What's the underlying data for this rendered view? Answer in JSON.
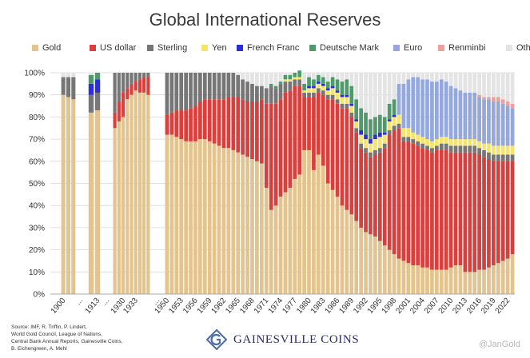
{
  "chart_data": {
    "type": "stacked-bar",
    "title": "Global International Reserves",
    "xlabel": "",
    "ylabel": "",
    "ylim": [
      0,
      100
    ],
    "y_tick_labels": [
      "0%",
      "10%",
      "20%",
      "30%",
      "40%",
      "50%",
      "60%",
      "70%",
      "80%",
      "90%",
      "100%"
    ],
    "grid": true,
    "legend_position": "top",
    "series_names": [
      "Gold",
      "US dollar",
      "Sterling",
      "Yen",
      "French Franc",
      "Deutsche Mark",
      "Euro",
      "Renminbi",
      "Other"
    ],
    "series_colors": [
      "#e3c48f",
      "#d9403d",
      "#767676",
      "#f5e56b",
      "#2b2be0",
      "#4f9a6a",
      "#94a8dd",
      "#f0a09a",
      "#e4e4e4"
    ],
    "x_tick_labels": [
      "1900",
      "...",
      "1913",
      "...",
      "1930",
      "1933",
      "...",
      "1950",
      "1953",
      "1956",
      "1959",
      "1962",
      "1965",
      "1968",
      "1971",
      "1974",
      "1977",
      "1980",
      "1983",
      "1986",
      "1989",
      "1992",
      "1995",
      "1998",
      "2001",
      "2004",
      "2007",
      "2010",
      "2013",
      "2016",
      "2019",
      "2022"
    ],
    "groups": [
      {
        "years": [
          1900,
          1901,
          1902
        ],
        "gold": [
          90,
          89,
          88
        ],
        "usd": [
          0,
          0,
          0
        ],
        "sterling": [
          8,
          9,
          10
        ],
        "ff": [
          0,
          0,
          0
        ],
        "dm": [
          0,
          0,
          0
        ],
        "yen": [
          0,
          0,
          0
        ],
        "euro": [
          0,
          0,
          0
        ],
        "rmb": [
          0,
          0,
          0
        ],
        "total": [
          100,
          100,
          100
        ]
      },
      {
        "years": [
          1912,
          1913
        ],
        "gold": [
          82,
          83
        ],
        "usd": [
          0,
          0
        ],
        "sterling": [
          8,
          8
        ],
        "ff": [
          5,
          6
        ],
        "dm": [
          4,
          3
        ],
        "yen": [
          0,
          0
        ],
        "euro": [
          0,
          0
        ],
        "rmb": [
          0,
          0
        ],
        "total": [
          100,
          100
        ]
      },
      {
        "years": [
          1928,
          1929,
          1930,
          1931,
          1932,
          1933,
          1934,
          1935,
          1936
        ],
        "gold": [
          75,
          78,
          80,
          88,
          90,
          92,
          91,
          91,
          90
        ],
        "usd": [
          7,
          9,
          11,
          5,
          5,
          4,
          6,
          7,
          8
        ],
        "sterling": [
          18,
          13,
          9,
          7,
          5,
          4,
          3,
          2,
          2
        ],
        "ff": [
          0,
          0,
          0,
          0,
          0,
          0,
          0,
          0,
          0
        ],
        "dm": [
          0,
          0,
          0,
          0,
          0,
          0,
          0,
          0,
          0
        ],
        "yen": [
          0,
          0,
          0,
          0,
          0,
          0,
          0,
          0,
          0
        ],
        "euro": [
          0,
          0,
          0,
          0,
          0,
          0,
          0,
          0,
          0
        ],
        "rmb": [
          0,
          0,
          0,
          0,
          0,
          0,
          0,
          0,
          0
        ],
        "total": [
          100,
          100,
          100,
          100,
          100,
          100,
          100,
          100,
          100
        ]
      },
      {
        "years": [
          1950,
          1951,
          1952,
          1953,
          1954,
          1955,
          1956,
          1957,
          1958,
          1959,
          1960,
          1961,
          1962,
          1963,
          1964,
          1965,
          1966,
          1967,
          1968,
          1969,
          1970,
          1971,
          1972,
          1973,
          1974,
          1975,
          1976,
          1977,
          1978,
          1979,
          1980,
          1981,
          1982,
          1983,
          1984,
          1985,
          1986,
          1987,
          1988,
          1989,
          1990,
          1991,
          1992,
          1993,
          1994,
          1995,
          1996,
          1997,
          1998,
          1999,
          2000,
          2001,
          2002,
          2003,
          2004,
          2005,
          2006,
          2007,
          2008,
          2009,
          2010,
          2011,
          2012,
          2013,
          2014,
          2015,
          2016,
          2017,
          2018,
          2019,
          2020,
          2021,
          2022,
          2023
        ],
        "gold": [
          72,
          72,
          71,
          70,
          69,
          69,
          69,
          70,
          70,
          69,
          68,
          67,
          66,
          66,
          65,
          64,
          63,
          62,
          61,
          60,
          59,
          48,
          38,
          40,
          44,
          46,
          48,
          52,
          54,
          65,
          65,
          56,
          63,
          58,
          50,
          47,
          44,
          40,
          38,
          36,
          33,
          30,
          28,
          27,
          26,
          24,
          22,
          20,
          18,
          16,
          15,
          14,
          13,
          13,
          12,
          12,
          11,
          11,
          11,
          11,
          12,
          13,
          13,
          10,
          10,
          10,
          11,
          11,
          12,
          13,
          14,
          15,
          16,
          18
        ],
        "usd": [
          9,
          10,
          12,
          13,
          14,
          15,
          16,
          17,
          18,
          19,
          20,
          21,
          22,
          23,
          24,
          25,
          25,
          25,
          26,
          27,
          29,
          38,
          48,
          46,
          44,
          45,
          44,
          42,
          40,
          24,
          24,
          33,
          28,
          32,
          38,
          41,
          42,
          44,
          46,
          44,
          40,
          36,
          36,
          35,
          37,
          40,
          44,
          52,
          56,
          59,
          54,
          55,
          55,
          54,
          54,
          53,
          53,
          54,
          54,
          54,
          52,
          51,
          51,
          54,
          54,
          54,
          52,
          51,
          49,
          47,
          46,
          45,
          44,
          42
        ],
        "sterling": [
          19,
          18,
          17,
          17,
          17,
          16,
          15,
          13,
          12,
          12,
          12,
          12,
          12,
          11,
          11,
          10,
          9,
          9,
          8,
          7,
          6,
          7,
          8,
          7,
          7,
          5,
          4,
          3,
          3,
          2,
          2,
          2,
          2,
          2,
          2,
          2,
          2,
          2,
          2,
          2,
          2,
          2,
          2,
          2,
          2,
          2,
          2,
          2,
          2,
          2,
          2,
          2,
          2,
          2,
          2,
          2,
          2,
          2,
          3,
          3,
          3,
          3,
          3,
          3,
          3,
          3,
          3,
          3,
          3,
          3,
          3,
          3,
          3,
          3
        ],
        "yen": [
          0,
          0,
          0,
          0,
          0,
          0,
          0,
          0,
          0,
          0,
          0,
          0,
          0,
          0,
          0,
          0,
          0,
          0,
          0,
          0,
          0,
          0,
          0,
          0,
          0,
          1,
          1,
          1,
          1,
          1,
          2,
          2,
          2,
          2,
          2,
          3,
          3,
          3,
          3,
          3,
          3,
          4,
          4,
          4,
          5,
          5,
          4,
          4,
          4,
          4,
          4,
          4,
          3,
          3,
          3,
          3,
          3,
          3,
          3,
          3,
          3,
          3,
          3,
          3,
          3,
          3,
          3,
          3,
          4,
          4,
          4,
          4,
          4,
          4
        ],
        "ff": [
          0,
          0,
          0,
          0,
          0,
          0,
          0,
          0,
          0,
          0,
          0,
          0,
          0,
          0,
          0,
          0,
          0,
          0,
          0,
          0,
          0,
          0,
          0,
          0,
          0,
          0,
          0,
          0,
          0,
          0,
          1,
          1,
          1,
          1,
          1,
          1,
          1,
          1,
          1,
          1,
          1,
          2,
          2,
          2,
          2,
          2,
          1,
          1,
          1,
          0,
          0,
          0,
          0,
          0,
          0,
          0,
          0,
          0,
          0,
          0,
          0,
          0,
          0,
          0,
          0,
          0,
          0,
          0,
          0,
          0,
          0,
          0,
          0,
          0
        ],
        "dm": [
          0,
          0,
          0,
          0,
          0,
          0,
          0,
          0,
          0,
          0,
          0,
          0,
          0,
          0,
          0,
          0,
          0,
          0,
          0,
          0,
          0,
          0,
          1,
          1,
          1,
          2,
          2,
          2,
          3,
          3,
          4,
          3,
          3,
          3,
          3,
          4,
          5,
          6,
          7,
          8,
          9,
          10,
          10,
          9,
          8,
          8,
          7,
          7,
          7,
          0,
          0,
          0,
          0,
          0,
          0,
          0,
          0,
          0,
          0,
          0,
          0,
          0,
          0,
          0,
          0,
          0,
          0,
          0,
          0,
          0,
          0,
          0,
          0,
          0
        ],
        "euro": [
          0,
          0,
          0,
          0,
          0,
          0,
          0,
          0,
          0,
          0,
          0,
          0,
          0,
          0,
          0,
          0,
          0,
          0,
          0,
          0,
          0,
          0,
          0,
          0,
          0,
          0,
          0,
          0,
          0,
          0,
          0,
          0,
          0,
          0,
          0,
          0,
          0,
          0,
          0,
          0,
          0,
          0,
          0,
          0,
          0,
          0,
          0,
          0,
          0,
          14,
          20,
          22,
          25,
          26,
          26,
          27,
          27,
          26,
          26,
          25,
          24,
          23,
          22,
          21,
          21,
          21,
          20,
          20,
          20,
          20,
          20,
          19,
          18,
          17
        ],
        "rmb": [
          0,
          0,
          0,
          0,
          0,
          0,
          0,
          0,
          0,
          0,
          0,
          0,
          0,
          0,
          0,
          0,
          0,
          0,
          0,
          0,
          0,
          0,
          0,
          0,
          0,
          0,
          0,
          0,
          0,
          0,
          0,
          0,
          0,
          0,
          0,
          0,
          0,
          0,
          0,
          0,
          0,
          0,
          0,
          0,
          0,
          0,
          0,
          0,
          0,
          0,
          0,
          0,
          0,
          0,
          0,
          0,
          0,
          0,
          0,
          0,
          0,
          0,
          0,
          0,
          0,
          0,
          1,
          1,
          1,
          2,
          2,
          2,
          2,
          2
        ],
        "total": [
          100,
          100,
          100,
          100,
          100,
          100,
          100,
          100,
          100,
          100,
          100,
          100,
          100,
          100,
          100,
          100,
          100,
          100,
          100,
          100,
          100,
          100,
          100,
          100,
          100,
          100,
          100,
          100,
          100,
          100,
          100,
          100,
          100,
          100,
          100,
          100,
          100,
          100,
          100,
          100,
          100,
          100,
          100,
          100,
          100,
          100,
          100,
          100,
          100,
          100,
          100,
          100,
          100,
          100,
          100,
          100,
          100,
          100,
          100,
          100,
          100,
          100,
          100,
          100,
          100,
          100,
          100,
          100,
          100,
          100,
          100,
          100,
          100,
          100
        ]
      }
    ]
  },
  "source_lines": [
    "Source: IMF, R. Triffin, P. Lindert,",
    "World Gold Council, League of Nations,",
    "Central Bank Annual Reports, Gainesville Coins,",
    "B. Eichengreen, A. Mehl"
  ],
  "brand": {
    "name": "GAINESVILLE COINS"
  },
  "watermark": "@JanGold"
}
